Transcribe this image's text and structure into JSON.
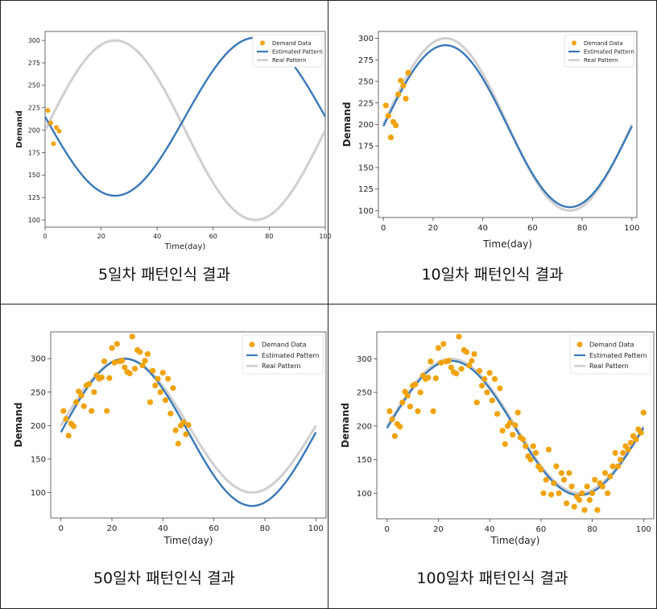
{
  "colors": {
    "demand": "#F0A30A",
    "estimated": "#3A78B6",
    "real": "#CFCFCF"
  },
  "panels": [
    {
      "caption": "5일차 패턴인식 결과"
    },
    {
      "caption": "10일차 패턴인식 결과"
    },
    {
      "caption": "50일차 패턴인식 결과"
    },
    {
      "caption": "100일차 패턴인식 결과"
    }
  ],
  "chart_data": [
    {
      "type": "line",
      "xlabel": "Time(day)",
      "ylabel": "Demand",
      "xlim": [
        0,
        100
      ],
      "ylim": [
        92,
        310
      ],
      "xticks": [
        0,
        20,
        40,
        60,
        80,
        100
      ],
      "yticks": [
        100,
        125,
        150,
        175,
        200,
        225,
        250,
        275,
        300
      ],
      "legend": "top-right",
      "legend_entries": [
        "Demand Data",
        "Estimated Pattern",
        "Real Pattern"
      ],
      "series": [
        {
          "name": "Demand Data",
          "kind": "scatter",
          "x": [
            1,
            2,
            3,
            4,
            5
          ],
          "y": [
            222,
            208,
            185,
            203,
            199
          ]
        },
        {
          "name": "Estimated Pattern",
          "kind": "sine",
          "center": 215,
          "amplitude": 88,
          "phase": "downward"
        },
        {
          "name": "Real Pattern",
          "kind": "sine",
          "center": 200,
          "amplitude": 100,
          "phase": "upward"
        }
      ]
    },
    {
      "type": "line",
      "xlabel": "Time(day)",
      "ylabel": "Demand",
      "xlim": [
        -2,
        102
      ],
      "ylim": [
        92,
        308
      ],
      "xticks": [
        0,
        20,
        40,
        60,
        80,
        100
      ],
      "yticks": [
        100,
        125,
        150,
        175,
        200,
        225,
        250,
        275,
        300
      ],
      "legend": "top-right",
      "legend_entries": [
        "Demand Data",
        "Estimated Pattern",
        "Real Pattern"
      ],
      "series": [
        {
          "name": "Demand Data",
          "kind": "scatter",
          "x": [
            1,
            2,
            3,
            4,
            5,
            6,
            7,
            8,
            9,
            10
          ],
          "y": [
            222,
            210,
            185,
            203,
            199,
            235,
            251,
            245,
            230,
            260
          ]
        },
        {
          "name": "Estimated Pattern",
          "kind": "sine",
          "center": 198,
          "amplitude": 94,
          "phase": "upward"
        },
        {
          "name": "Real Pattern",
          "kind": "sine",
          "center": 200,
          "amplitude": 100,
          "phase": "upward"
        }
      ]
    },
    {
      "type": "line",
      "xlabel": "Time(day)",
      "ylabel": "Demand",
      "xlim": [
        -4,
        104
      ],
      "ylim": [
        62,
        340
      ],
      "xticks": [
        0,
        20,
        40,
        60,
        80,
        100
      ],
      "yticks": [
        100,
        150,
        200,
        250,
        300
      ],
      "legend": "top-right",
      "legend_entries": [
        "Demand Data",
        "Estimated Pattern",
        "Real Pattern"
      ],
      "series": [
        {
          "name": "Demand Data",
          "kind": "scatter",
          "x": [
            1,
            2,
            3,
            4,
            5,
            6,
            7,
            8,
            9,
            10,
            11,
            12,
            13,
            14,
            15,
            16,
            17,
            18,
            19,
            20,
            21,
            22,
            23,
            24,
            25,
            26,
            27,
            28,
            29,
            30,
            31,
            32,
            33,
            34,
            35,
            36,
            37,
            38,
            39,
            40,
            41,
            42,
            43,
            44,
            45,
            46,
            47,
            48,
            49,
            50
          ],
          "y": [
            222,
            210,
            185,
            203,
            199,
            235,
            251,
            245,
            229,
            260,
            262,
            222,
            250,
            275,
            270,
            272,
            296,
            222,
            271,
            316,
            294,
            322,
            296,
            297,
            287,
            280,
            278,
            333,
            285,
            313,
            310,
            290,
            297,
            307,
            235,
            282,
            260,
            270,
            250,
            279,
            238,
            270,
            218,
            256,
            193,
            173,
            200,
            205,
            187,
            201
          ]
        },
        {
          "name": "Estimated Pattern",
          "kind": "sine",
          "center": 190,
          "amplitude": 110,
          "phase": "upward"
        },
        {
          "name": "Real Pattern",
          "kind": "sine",
          "center": 200,
          "amplitude": 100,
          "phase": "upward"
        }
      ]
    },
    {
      "type": "line",
      "xlabel": "Time(day)",
      "ylabel": "Demand",
      "xlim": [
        -4,
        104
      ],
      "ylim": [
        62,
        340
      ],
      "xticks": [
        0,
        20,
        40,
        60,
        80,
        100
      ],
      "yticks": [
        100,
        150,
        200,
        250,
        300
      ],
      "legend": "top-right",
      "legend_entries": [
        "Demand Data",
        "Estimated Pattern",
        "Real Pattern"
      ],
      "series": [
        {
          "name": "Demand Data",
          "kind": "scatter",
          "x": [
            1,
            2,
            3,
            4,
            5,
            6,
            7,
            8,
            9,
            10,
            11,
            12,
            13,
            14,
            15,
            16,
            17,
            18,
            19,
            20,
            21,
            22,
            23,
            24,
            25,
            26,
            27,
            28,
            29,
            30,
            31,
            32,
            33,
            34,
            35,
            36,
            37,
            38,
            39,
            40,
            41,
            42,
            43,
            44,
            45,
            46,
            47,
            48,
            49,
            50,
            51,
            52,
            53,
            54,
            55,
            56,
            57,
            58,
            59,
            60,
            61,
            62,
            63,
            64,
            65,
            66,
            67,
            68,
            69,
            70,
            71,
            72,
            73,
            74,
            75,
            76,
            77,
            78,
            79,
            80,
            81,
            82,
            83,
            84,
            85,
            86,
            87,
            88,
            89,
            90,
            91,
            92,
            93,
            94,
            95,
            96,
            97,
            98,
            99,
            100
          ],
          "y": [
            222,
            210,
            185,
            203,
            199,
            235,
            251,
            245,
            229,
            260,
            262,
            222,
            250,
            275,
            270,
            272,
            296,
            222,
            271,
            316,
            294,
            322,
            296,
            297,
            287,
            280,
            278,
            333,
            285,
            313,
            310,
            290,
            297,
            307,
            235,
            282,
            260,
            270,
            250,
            279,
            238,
            270,
            218,
            256,
            193,
            173,
            200,
            205,
            187,
            201,
            220,
            183,
            180,
            170,
            155,
            150,
            170,
            160,
            140,
            135,
            100,
            120,
            165,
            98,
            115,
            140,
            100,
            130,
            120,
            85,
            130,
            110,
            80,
            95,
            90,
            100,
            75,
            110,
            90,
            100,
            120,
            75,
            115,
            110,
            130,
            100,
            125,
            140,
            160,
            140,
            150,
            160,
            170,
            165,
            175,
            185,
            180,
            195,
            190,
            220
          ]
        },
        {
          "name": "Estimated Pattern",
          "kind": "sine",
          "center": 197,
          "amplitude": 100,
          "phase": "upward"
        },
        {
          "name": "Real Pattern",
          "kind": "sine",
          "center": 200,
          "amplitude": 100,
          "phase": "upward"
        }
      ]
    }
  ]
}
